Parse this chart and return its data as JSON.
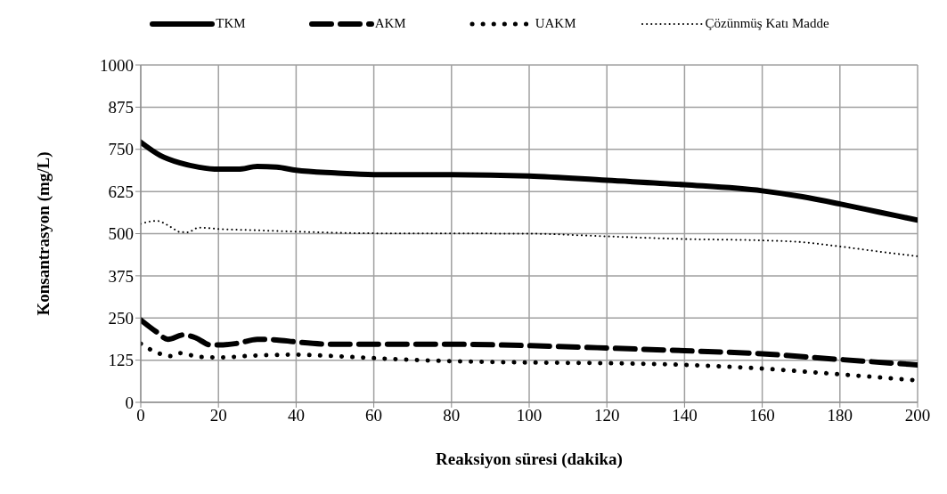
{
  "chart_data": {
    "type": "line",
    "xlabel": "Reaksiyon süresi (dakika)",
    "ylabel": "Konsantrasyon (mg/L)",
    "xlim": [
      0,
      200
    ],
    "xticks": [
      0,
      20,
      40,
      60,
      80,
      100,
      120,
      140,
      160,
      180,
      200
    ],
    "ylim": [
      0,
      1000
    ],
    "yticks": [
      0,
      125,
      250,
      375,
      500,
      625,
      750,
      875,
      1000
    ],
    "grid": true,
    "legend": "top",
    "marker": "none",
    "series": [
      {
        "name": "TKM",
        "color": "#000000",
        "line_style": "solid",
        "x": [
          0,
          5,
          10,
          15,
          20,
          25,
          30,
          35,
          40,
          50,
          60,
          80,
          100,
          120,
          140,
          160,
          170,
          180,
          190,
          200
        ],
        "values": [
          771,
          732,
          710,
          697,
          691,
          691,
          699,
          697,
          688,
          680,
          675,
          675,
          671,
          658,
          645,
          627,
          610,
          588,
          564,
          540
        ]
      },
      {
        "name": "AKM",
        "color": "#000000",
        "line_style": "dashed",
        "x": [
          0,
          4,
          7,
          11,
          14,
          18,
          20,
          25,
          30,
          35,
          40,
          50,
          60,
          80,
          100,
          120,
          140,
          160,
          180,
          200
        ],
        "values": [
          244,
          209,
          187,
          200,
          192,
          170,
          170,
          175,
          187,
          185,
          179,
          172,
          172,
          172,
          168,
          161,
          153,
          144,
          127,
          111
        ]
      },
      {
        "name": "UAKM",
        "color": "#000000",
        "line_style": "dotted",
        "x": [
          0,
          4,
          8,
          10,
          15,
          20,
          30,
          40,
          50,
          60,
          80,
          100,
          120,
          140,
          160,
          180,
          200
        ],
        "values": [
          174,
          148,
          137,
          146,
          135,
          133,
          139,
          141,
          137,
          131,
          122,
          118,
          116,
          111,
          100,
          83,
          65
        ]
      },
      {
        "name": "Çözünmüş Katı Madde",
        "color": "#000000",
        "line_style": "dotted",
        "x": [
          0,
          4,
          8,
          10,
          12,
          15,
          20,
          30,
          40,
          60,
          100,
          120,
          140,
          160,
          170,
          180,
          190,
          200
        ],
        "values": [
          529,
          538,
          518,
          505,
          504,
          518,
          514,
          510,
          506,
          501,
          500,
          492,
          484,
          480,
          475,
          462,
          447,
          433
        ]
      }
    ]
  }
}
